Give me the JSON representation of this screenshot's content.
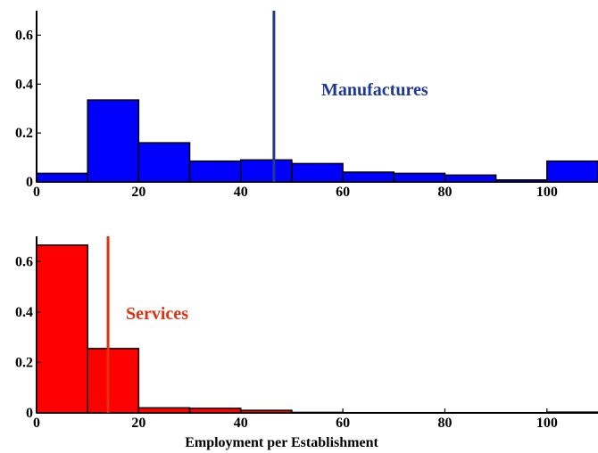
{
  "chart_data": [
    {
      "type": "bar",
      "title": "",
      "xlabel": "",
      "ylabel": "",
      "annotation": "Manufactures",
      "bar_color": "#0000ff",
      "annotation_color": "#1f3a93",
      "marker_color": "#1f3a93",
      "bin_width": 10,
      "xlim": [
        0,
        110
      ],
      "ylim": [
        0,
        0.7
      ],
      "x_ticks": [
        0,
        20,
        40,
        60,
        80,
        100
      ],
      "y_ticks": [
        0,
        0.2,
        0.4,
        0.6
      ],
      "y_tick_labels": [
        "0",
        "0.2",
        "0.4",
        "0.6"
      ],
      "bins": [
        0,
        10,
        20,
        30,
        40,
        50,
        60,
        70,
        80,
        90,
        100
      ],
      "values": [
        0.035,
        0.335,
        0.16,
        0.085,
        0.09,
        0.075,
        0.04,
        0.035,
        0.028,
        0.008,
        0.085
      ],
      "marker_x": 46.5
    },
    {
      "type": "bar",
      "title": "",
      "xlabel": "Employment per Establishment",
      "ylabel": "",
      "annotation": "Services",
      "bar_color": "#ff0000",
      "annotation_color": "#e03010",
      "marker_color": "#e03010",
      "bin_width": 10,
      "xlim": [
        0,
        110
      ],
      "ylim": [
        0,
        0.7
      ],
      "x_ticks": [
        0,
        20,
        40,
        60,
        80,
        100
      ],
      "y_ticks": [
        0,
        0.2,
        0.4,
        0.6
      ],
      "y_tick_labels": [
        "0",
        "0.2",
        "0.4",
        "0.6"
      ],
      "bins": [
        0,
        10,
        20,
        30,
        40,
        50,
        60,
        70,
        80,
        90,
        100
      ],
      "values": [
        0.665,
        0.255,
        0.02,
        0.018,
        0.01,
        0.002,
        0.001,
        0.001,
        0.001,
        0.001,
        0.003
      ],
      "marker_x": 14
    }
  ]
}
